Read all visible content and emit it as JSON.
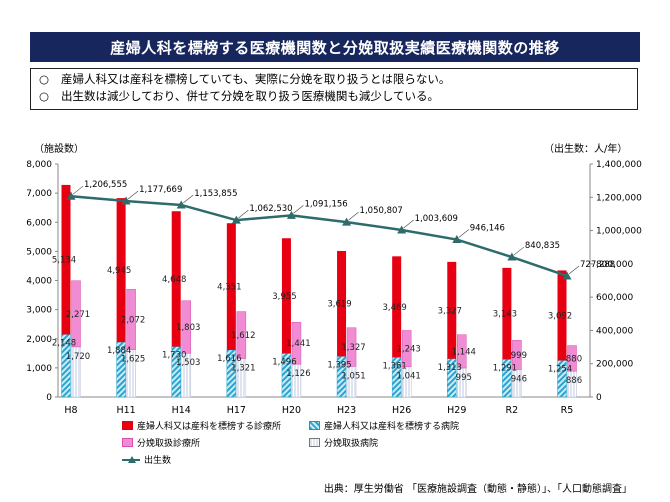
{
  "title": "産婦人科を標榜する医療機関数と分娩取扱実績医療機関数の推移",
  "notes": [
    {
      "bullet": "○",
      "text": "産婦人科又は産科を標榜していても、実際に分娩を取り扱うとは限らない。"
    },
    {
      "bullet": "○",
      "text": "出生数は減少しており、併せて分娩を取り扱う医療機関も減少している。"
    }
  ],
  "source": "出典：厚生労働省 「医療施設調査（動態・静態）」、「人口動態調査」",
  "colors": {
    "clinic_all": "#e60012",
    "hospital_all": "#2aa3cf",
    "clinic_delivery": "#f08cd4",
    "hospital_delivery": "#dfe5f0",
    "births": "#2e6b6b"
  },
  "chart_data": {
    "type": "bar",
    "categories": [
      "H8",
      "H11",
      "H14",
      "H17",
      "H20",
      "H23",
      "H26",
      "H29",
      "R2",
      "R5"
    ],
    "ylabel": "（施設数）",
    "y2label": "（出生数：人/年）",
    "ylim": [
      0,
      8000
    ],
    "yticks": [
      0,
      1000,
      2000,
      3000,
      4000,
      5000,
      6000,
      7000,
      8000
    ],
    "y2lim": [
      0,
      1400000
    ],
    "y2ticks": [
      0,
      200000,
      400000,
      600000,
      800000,
      1000000,
      1200000,
      1400000
    ],
    "grid": false,
    "legend_position": "bottom",
    "series": [
      {
        "name": "産婦人科又は産科を標榜する病院",
        "key": "hospital_all",
        "values": [
          2148,
          1884,
          1730,
          1616,
          1496,
          1395,
          1361,
          1313,
          1291,
          1254
        ],
        "labels": [
          "2,148",
          "1,884",
          "1,730",
          "1,616",
          "1,496",
          "1,395",
          "1,361",
          "1,313",
          "1,291",
          "1,254"
        ]
      },
      {
        "name": "産婦人科又は産科を標榜する診療所",
        "key": "clinic_all",
        "values": [
          5134,
          4945,
          4648,
          4351,
          3955,
          3619,
          3469,
          3327,
          3143,
          3092
        ],
        "labels": [
          "5,134",
          "4,945",
          "4,648",
          "4,351",
          "3,955",
          "3,619",
          "3,469",
          "3,327",
          "3,143",
          "3,092"
        ]
      },
      {
        "name": "分娩取扱病院",
        "key": "hospital_delivery",
        "values": [
          1720,
          1625,
          1503,
          1321,
          1126,
          1051,
          1041,
          995,
          946,
          886
        ],
        "labels": [
          "1,720",
          "1,625",
          "1,503",
          "1,321",
          "1,126",
          "1,051",
          "1,041",
          "995",
          "946",
          "886"
        ]
      },
      {
        "name": "分娩取扱診療所",
        "key": "clinic_delivery",
        "values": [
          2271,
          2072,
          1803,
          1612,
          1441,
          1327,
          1243,
          1144,
          999,
          880
        ],
        "labels": [
          "2,271",
          "2,072",
          "1,803",
          "1,612",
          "1,441",
          "1,327",
          "1,243",
          "1,144",
          "999",
          "880"
        ]
      },
      {
        "name": "出生数",
        "key": "births",
        "type": "line",
        "axis": "right",
        "values": [
          1206555,
          1177669,
          1153855,
          1062530,
          1091156,
          1050807,
          1003609,
          946146,
          840835,
          727288
        ],
        "labels": [
          "1,206,555",
          "1,177,669",
          "1,153,855",
          "1,062,530",
          "1,091,156",
          "1,050,807",
          "1,003,609",
          "946,146",
          "840,835",
          "727,288"
        ]
      }
    ],
    "y_tick_labels": [
      "0",
      "1,000",
      "2,000",
      "3,000",
      "4,000",
      "5,000",
      "6,000",
      "7,000",
      "8,000"
    ],
    "y2_tick_labels": [
      "0",
      "200,000",
      "400,000",
      "600,000",
      "800,000",
      "1,000,000",
      "1,200,000",
      "1,400,000"
    ]
  }
}
